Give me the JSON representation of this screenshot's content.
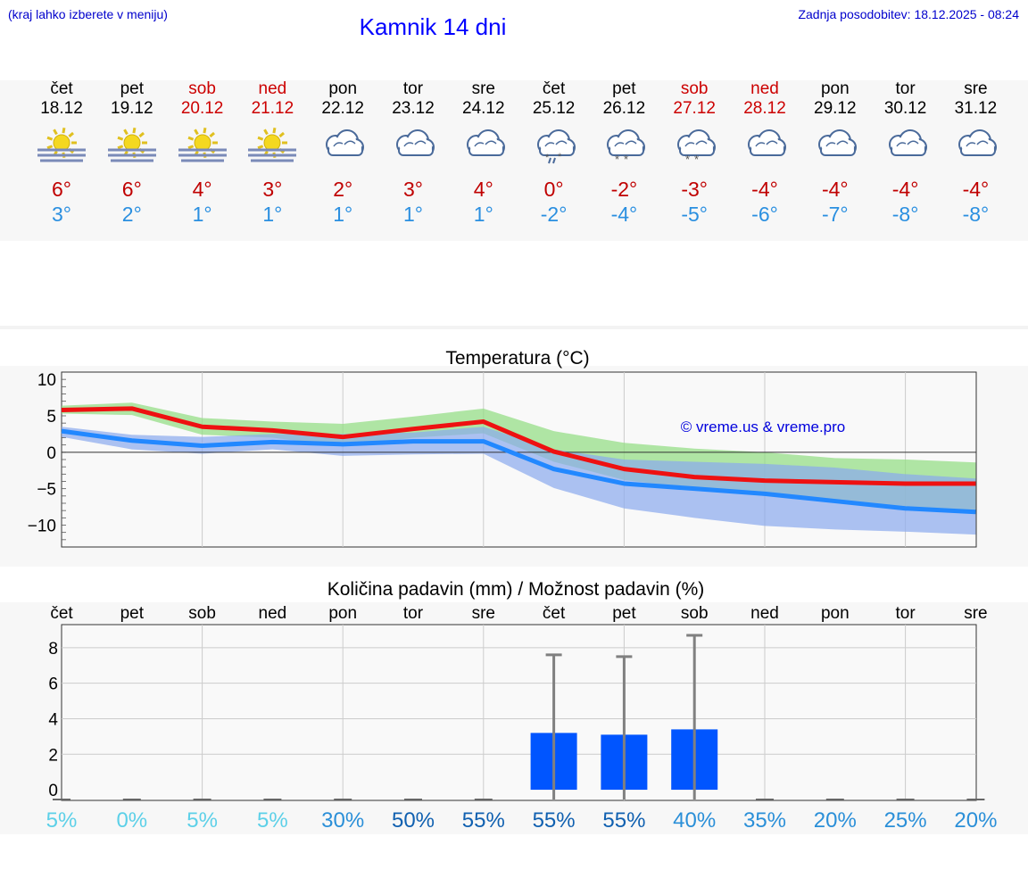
{
  "header": {
    "hint": "(kraj lahko izberete v meniju)",
    "title": "Kamnik 14 dni",
    "updated": "Zadnja posodobitev: 18.12.2025 - 08:24"
  },
  "colors": {
    "weekday": "#000000",
    "weekend": "#cc0000",
    "tmax": "#cc0000",
    "tmin": "#2a8fe0",
    "line_max": "#ee1111",
    "line_min": "#2288ff",
    "band_max": "#90dd80",
    "band_min": "#8aaaee",
    "bar": "#0055ff"
  },
  "days": [
    {
      "name": "čet",
      "date": "18.12",
      "weekend": false,
      "icon": "sun-fog-icon",
      "tmax": "6°",
      "tmin": "3°"
    },
    {
      "name": "pet",
      "date": "19.12",
      "weekend": false,
      "icon": "sun-fog-icon",
      "tmax": "6°",
      "tmin": "2°"
    },
    {
      "name": "sob",
      "date": "20.12",
      "weekend": true,
      "icon": "sun-fog-icon",
      "tmax": "4°",
      "tmin": "1°"
    },
    {
      "name": "ned",
      "date": "21.12",
      "weekend": true,
      "icon": "sun-fog-icon",
      "tmax": "3°",
      "tmin": "1°"
    },
    {
      "name": "pon",
      "date": "22.12",
      "weekend": false,
      "icon": "cloud-icon",
      "tmax": "2°",
      "tmin": "1°"
    },
    {
      "name": "tor",
      "date": "23.12",
      "weekend": false,
      "icon": "cloud-icon",
      "tmax": "3°",
      "tmin": "1°"
    },
    {
      "name": "sre",
      "date": "24.12",
      "weekend": false,
      "icon": "cloud-icon",
      "tmax": "4°",
      "tmin": "1°"
    },
    {
      "name": "čet",
      "date": "25.12",
      "weekend": false,
      "icon": "cloud-sleet-icon",
      "tmax": "0°",
      "tmin": "-2°"
    },
    {
      "name": "pet",
      "date": "26.12",
      "weekend": false,
      "icon": "cloud-snow-icon",
      "tmax": "-2°",
      "tmin": "-4°"
    },
    {
      "name": "sob",
      "date": "27.12",
      "weekend": true,
      "icon": "cloud-snow-icon",
      "tmax": "-3°",
      "tmin": "-5°"
    },
    {
      "name": "ned",
      "date": "28.12",
      "weekend": true,
      "icon": "cloud-icon",
      "tmax": "-4°",
      "tmin": "-6°"
    },
    {
      "name": "pon",
      "date": "29.12",
      "weekend": false,
      "icon": "cloud-icon",
      "tmax": "-4°",
      "tmin": "-7°"
    },
    {
      "name": "tor",
      "date": "30.12",
      "weekend": false,
      "icon": "cloud-icon",
      "tmax": "-4°",
      "tmin": "-8°"
    },
    {
      "name": "sre",
      "date": "31.12",
      "weekend": false,
      "icon": "cloud-icon",
      "tmax": "-4°",
      "tmin": "-8°"
    }
  ],
  "chart_data": [
    {
      "type": "line",
      "title": "Temperatura (°C)",
      "watermark": "© vreme.us & vreme.pro",
      "ylim": [
        -13,
        11
      ],
      "yticks": [
        10,
        5,
        0,
        -5,
        -10
      ],
      "ytick_labels": [
        "10",
        "5",
        "0",
        "−5",
        "−10"
      ],
      "x": [
        0,
        1,
        2,
        3,
        4,
        5,
        6,
        7,
        8,
        9,
        10,
        11,
        12,
        13
      ],
      "series": [
        {
          "name": "max",
          "values": [
            5.8,
            6.0,
            3.5,
            3.0,
            2.1,
            3.2,
            4.2,
            0.1,
            -2.3,
            -3.4,
            -3.9,
            -4.1,
            -4.3,
            -4.3
          ]
        },
        {
          "name": "min",
          "values": [
            2.9,
            1.6,
            0.9,
            1.4,
            1.1,
            1.5,
            1.5,
            -2.3,
            -4.3,
            -5.0,
            -5.7,
            -6.7,
            -7.7,
            -8.2
          ]
        }
      ],
      "bands": [
        {
          "name": "max-range",
          "lower": [
            5.3,
            5.1,
            2.4,
            2.0,
            0.8,
            2.0,
            2.6,
            -1.3,
            -3.8,
            -5.0,
            -6.0,
            -6.5,
            -7.5,
            -8.0
          ],
          "upper": [
            6.4,
            6.8,
            4.7,
            4.2,
            3.9,
            4.9,
            6.0,
            2.9,
            1.3,
            0.5,
            0.0,
            -0.8,
            -1.0,
            -1.4
          ]
        },
        {
          "name": "min-range",
          "lower": [
            2.1,
            0.4,
            -0.2,
            0.4,
            -0.5,
            -0.3,
            -0.2,
            -4.9,
            -7.7,
            -9.0,
            -10.1,
            -10.6,
            -10.9,
            -11.3
          ],
          "upper": [
            3.5,
            2.4,
            2.1,
            2.5,
            2.5,
            2.7,
            3.5,
            0.4,
            -1.0,
            -1.3,
            -1.6,
            -2.1,
            -3.0,
            -3.6
          ]
        }
      ]
    },
    {
      "type": "bar",
      "title": "Količina padavin (mm) / Možnost padavin (%)",
      "categories": [
        "čet",
        "pet",
        "sob",
        "ned",
        "pon",
        "tor",
        "sre",
        "čet",
        "pet",
        "sob",
        "ned",
        "pon",
        "tor",
        "sre"
      ],
      "values": [
        0,
        0,
        0,
        0,
        0,
        0,
        0,
        3.2,
        3.1,
        3.4,
        0,
        0,
        0,
        0
      ],
      "error_max": [
        0,
        0,
        0,
        0,
        0,
        0,
        0,
        7.6,
        7.5,
        8.7,
        0,
        0,
        0,
        0
      ],
      "probability": [
        "5%",
        "0%",
        "5%",
        "5%",
        "30%",
        "50%",
        "55%",
        "55%",
        "55%",
        "40%",
        "35%",
        "20%",
        "25%",
        "20%"
      ],
      "probability_colors": [
        "#5cd0e8",
        "#5cd0e8",
        "#5cd0e8",
        "#5cd0e8",
        "#2a8fd8",
        "#1060b0",
        "#1060b0",
        "#1060b0",
        "#1060b0",
        "#2a8fd8",
        "#2a8fd8",
        "#2a8fd8",
        "#2a8fd8",
        "#2a8fd8"
      ],
      "ylim": [
        -0.6,
        9.3
      ],
      "yticks": [
        8,
        6,
        4,
        2,
        0
      ],
      "ytick_labels": [
        "8",
        "6",
        "4",
        "2",
        "0"
      ]
    }
  ]
}
